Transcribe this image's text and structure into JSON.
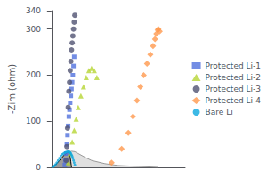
{
  "chart_data": {
    "type": "scatter",
    "ylabel": "-Zim (ohm)",
    "xlim": [
      -5,
      200
    ],
    "ylim": [
      0,
      340
    ],
    "yticks": [
      0,
      100,
      200,
      300
    ],
    "tick_labels": "y",
    "grid": false,
    "legend": "right",
    "series": [
      {
        "type": "area",
        "color": "#999999",
        "x": [
          0,
          5,
          10,
          15,
          20,
          25,
          30,
          35,
          40,
          50,
          60,
          80,
          100,
          130,
          160
        ],
        "values": [
          0,
          5,
          12,
          20,
          27,
          32,
          35,
          34,
          30,
          22,
          15,
          8,
          4,
          2,
          0
        ]
      },
      {
        "type": "area",
        "color": "#000000",
        "x": [
          0,
          3,
          6,
          9,
          12,
          15,
          18,
          20,
          22,
          24,
          25,
          26,
          27,
          28,
          29,
          30
        ],
        "values": [
          0,
          2,
          5,
          10,
          15,
          20,
          25,
          28,
          30,
          32,
          32,
          31,
          28,
          22,
          12,
          0
        ]
      },
      {
        "name": "Protected Li-1",
        "type": "scatter",
        "marker": "square",
        "x": [
          20,
          21,
          22,
          23,
          24,
          25,
          26,
          27,
          28,
          29,
          30,
          31,
          32,
          33,
          34
        ],
        "values": [
          5,
          15,
          30,
          50,
          70,
          90,
          110,
          125,
          140,
          155,
          170,
          185,
          200,
          220,
          240
        ]
      },
      {
        "name": "Protected Li-2",
        "type": "scatter",
        "marker": "triangle",
        "x": [
          25,
          28,
          31,
          34,
          37,
          40,
          44,
          48,
          52,
          56,
          60,
          64,
          68
        ],
        "values": [
          10,
          30,
          55,
          80,
          105,
          130,
          155,
          175,
          195,
          210,
          215,
          210,
          195
        ]
      },
      {
        "name": "Protected Li-3",
        "type": "scatter",
        "marker": "circle",
        "x": [
          22,
          23,
          24,
          25,
          26,
          27,
          28,
          29,
          30,
          31,
          32,
          33,
          34,
          35
        ],
        "values": [
          15,
          45,
          85,
          130,
          165,
          185,
          210,
          230,
          255,
          270,
          285,
          300,
          315,
          330
        ]
      },
      {
        "name": "Protected Li-4",
        "type": "scatter",
        "marker": "diamond",
        "x": [
          90,
          105,
          115,
          122,
          128,
          133,
          138,
          143,
          148,
          152,
          155,
          157,
          159,
          160,
          162
        ],
        "values": [
          10,
          40,
          75,
          110,
          145,
          175,
          200,
          225,
          245,
          263,
          278,
          290,
          298,
          300,
          295
        ]
      },
      {
        "name": "Bare Li",
        "type": "scatter",
        "marker": "point",
        "x": [
          2,
          4,
          6,
          8,
          10,
          12,
          14,
          16,
          18,
          20,
          22,
          24,
          26,
          27,
          28,
          29,
          30,
          31,
          32,
          33,
          34,
          35
        ],
        "values": [
          1,
          3,
          6,
          10,
          15,
          20,
          25,
          28,
          30,
          32,
          33,
          34,
          34,
          33,
          32,
          30,
          27,
          24,
          20,
          15,
          10,
          5
        ]
      }
    ]
  }
}
